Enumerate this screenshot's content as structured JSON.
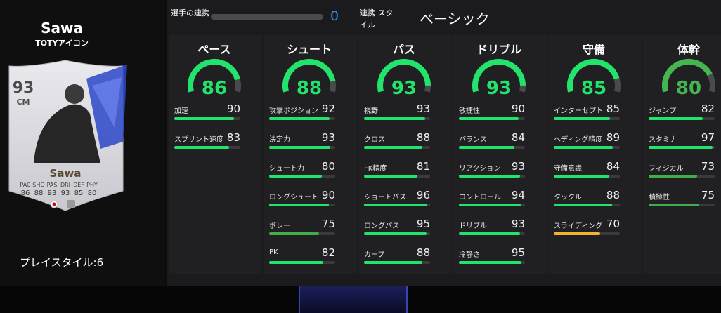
{
  "player": {
    "name": "Sawa",
    "card_type": "TOTYアイコン",
    "playstyle_label": "プレイスタイル:",
    "playstyle_count": 6
  },
  "card": {
    "rating": 93,
    "position": "CM",
    "name": "Sawa",
    "stats": [
      {
        "label": "PAC",
        "value": 86
      },
      {
        "label": "SHO",
        "value": 88
      },
      {
        "label": "PAS",
        "value": 93
      },
      {
        "label": "DRI",
        "value": 93
      },
      {
        "label": "DEF",
        "value": 85
      },
      {
        "label": "PHY",
        "value": 80
      }
    ]
  },
  "chemistry": {
    "label": "選手の連携",
    "value": 0,
    "style_label": "連携 スタイル",
    "style": "ベーシック"
  },
  "categories": [
    {
      "name": "ペース",
      "value": 86,
      "stats": [
        {
          "name": "加速",
          "value": 90
        },
        {
          "name": "スプリント速度",
          "value": 83
        }
      ]
    },
    {
      "name": "シュート",
      "value": 88,
      "stats": [
        {
          "name": "攻撃ポジション",
          "value": 92
        },
        {
          "name": "決定力",
          "value": 93
        },
        {
          "name": "シュート力",
          "value": 80
        },
        {
          "name": "ロングシュート",
          "value": 90
        },
        {
          "name": "ボレー",
          "value": 75
        },
        {
          "name": "PK",
          "value": 82
        }
      ]
    },
    {
      "name": "パス",
      "value": 93,
      "stats": [
        {
          "name": "視野",
          "value": 93
        },
        {
          "name": "クロス",
          "value": 88
        },
        {
          "name": "FK精度",
          "value": 81
        },
        {
          "name": "ショートパス",
          "value": 96
        },
        {
          "name": "ロングパス",
          "value": 95
        },
        {
          "name": "カーブ",
          "value": 88
        }
      ]
    },
    {
      "name": "ドリブル",
      "value": 93,
      "stats": [
        {
          "name": "敏捷性",
          "value": 90
        },
        {
          "name": "バランス",
          "value": 84
        },
        {
          "name": "リアクション",
          "value": 93
        },
        {
          "name": "コントロール",
          "value": 94
        },
        {
          "name": "ドリブル",
          "value": 93
        },
        {
          "name": "冷静さ",
          "value": 95
        }
      ]
    },
    {
      "name": "守備",
      "value": 85,
      "stats": [
        {
          "name": "インターセプト",
          "value": 85
        },
        {
          "name": "ヘディング精度",
          "value": 89
        },
        {
          "name": "守備意識",
          "value": 84
        },
        {
          "name": "タックル",
          "value": 88
        },
        {
          "name": "スライディング",
          "value": 70
        }
      ]
    },
    {
      "name": "体幹",
      "value": 80,
      "stats": [
        {
          "name": "ジャンプ",
          "value": 82
        },
        {
          "name": "スタミナ",
          "value": 97
        },
        {
          "name": "フィジカル",
          "value": 73
        },
        {
          "name": "積極性",
          "value": 75
        }
      ]
    }
  ]
}
